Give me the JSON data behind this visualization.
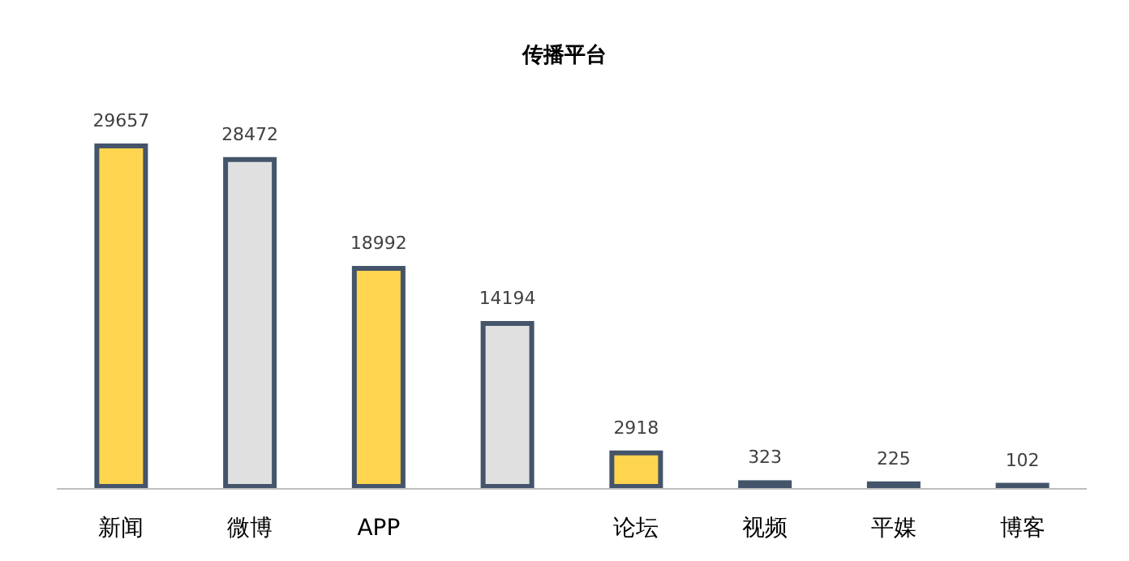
{
  "chart_data": {
    "type": "bar",
    "title": "传播平台",
    "categories": [
      "新闻",
      "微博",
      "APP",
      null,
      "论坛",
      "视频",
      "平媒",
      "博客"
    ],
    "values": [
      29657,
      28472,
      18992,
      14194,
      2918,
      323,
      225,
      102
    ],
    "colors": [
      "#ffd54f",
      "#e0e0e0",
      "#ffd54f",
      "#e0e0e0",
      "#ffd54f",
      "#e0e0e0",
      "#ffd54f",
      "#e0e0e0"
    ],
    "data_labels": true
  }
}
